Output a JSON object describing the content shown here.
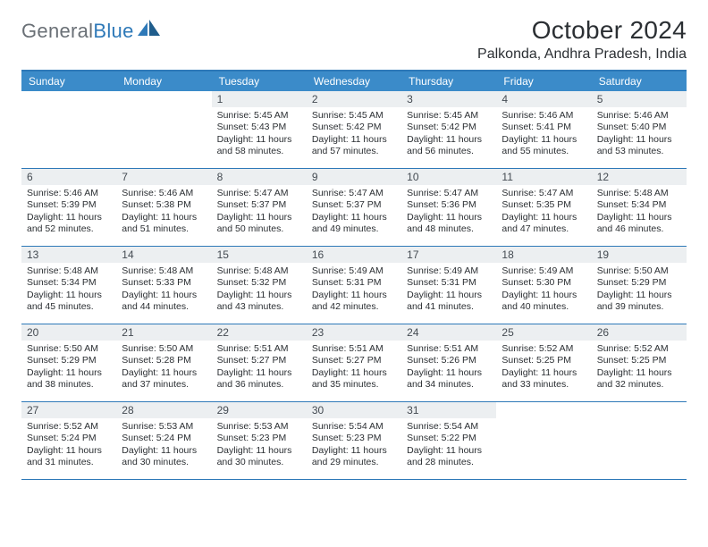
{
  "brand": {
    "general": "General",
    "blue": "Blue"
  },
  "title": "October 2024",
  "location": "Palkonda, Andhra Pradesh, India",
  "colors": {
    "header_bg": "#3b8bc9",
    "rule": "#2e79b8",
    "daynum_bg": "#eceff1",
    "text": "#2b2f33"
  },
  "weekdays": [
    "Sunday",
    "Monday",
    "Tuesday",
    "Wednesday",
    "Thursday",
    "Friday",
    "Saturday"
  ],
  "weeks": [
    [
      {
        "day": "",
        "sunrise": "",
        "sunset": "",
        "daylight": ""
      },
      {
        "day": "",
        "sunrise": "",
        "sunset": "",
        "daylight": ""
      },
      {
        "day": "1",
        "sunrise": "Sunrise: 5:45 AM",
        "sunset": "Sunset: 5:43 PM",
        "daylight": "Daylight: 11 hours and 58 minutes."
      },
      {
        "day": "2",
        "sunrise": "Sunrise: 5:45 AM",
        "sunset": "Sunset: 5:42 PM",
        "daylight": "Daylight: 11 hours and 57 minutes."
      },
      {
        "day": "3",
        "sunrise": "Sunrise: 5:45 AM",
        "sunset": "Sunset: 5:42 PM",
        "daylight": "Daylight: 11 hours and 56 minutes."
      },
      {
        "day": "4",
        "sunrise": "Sunrise: 5:46 AM",
        "sunset": "Sunset: 5:41 PM",
        "daylight": "Daylight: 11 hours and 55 minutes."
      },
      {
        "day": "5",
        "sunrise": "Sunrise: 5:46 AM",
        "sunset": "Sunset: 5:40 PM",
        "daylight": "Daylight: 11 hours and 53 minutes."
      }
    ],
    [
      {
        "day": "6",
        "sunrise": "Sunrise: 5:46 AM",
        "sunset": "Sunset: 5:39 PM",
        "daylight": "Daylight: 11 hours and 52 minutes."
      },
      {
        "day": "7",
        "sunrise": "Sunrise: 5:46 AM",
        "sunset": "Sunset: 5:38 PM",
        "daylight": "Daylight: 11 hours and 51 minutes."
      },
      {
        "day": "8",
        "sunrise": "Sunrise: 5:47 AM",
        "sunset": "Sunset: 5:37 PM",
        "daylight": "Daylight: 11 hours and 50 minutes."
      },
      {
        "day": "9",
        "sunrise": "Sunrise: 5:47 AM",
        "sunset": "Sunset: 5:37 PM",
        "daylight": "Daylight: 11 hours and 49 minutes."
      },
      {
        "day": "10",
        "sunrise": "Sunrise: 5:47 AM",
        "sunset": "Sunset: 5:36 PM",
        "daylight": "Daylight: 11 hours and 48 minutes."
      },
      {
        "day": "11",
        "sunrise": "Sunrise: 5:47 AM",
        "sunset": "Sunset: 5:35 PM",
        "daylight": "Daylight: 11 hours and 47 minutes."
      },
      {
        "day": "12",
        "sunrise": "Sunrise: 5:48 AM",
        "sunset": "Sunset: 5:34 PM",
        "daylight": "Daylight: 11 hours and 46 minutes."
      }
    ],
    [
      {
        "day": "13",
        "sunrise": "Sunrise: 5:48 AM",
        "sunset": "Sunset: 5:34 PM",
        "daylight": "Daylight: 11 hours and 45 minutes."
      },
      {
        "day": "14",
        "sunrise": "Sunrise: 5:48 AM",
        "sunset": "Sunset: 5:33 PM",
        "daylight": "Daylight: 11 hours and 44 minutes."
      },
      {
        "day": "15",
        "sunrise": "Sunrise: 5:48 AM",
        "sunset": "Sunset: 5:32 PM",
        "daylight": "Daylight: 11 hours and 43 minutes."
      },
      {
        "day": "16",
        "sunrise": "Sunrise: 5:49 AM",
        "sunset": "Sunset: 5:31 PM",
        "daylight": "Daylight: 11 hours and 42 minutes."
      },
      {
        "day": "17",
        "sunrise": "Sunrise: 5:49 AM",
        "sunset": "Sunset: 5:31 PM",
        "daylight": "Daylight: 11 hours and 41 minutes."
      },
      {
        "day": "18",
        "sunrise": "Sunrise: 5:49 AM",
        "sunset": "Sunset: 5:30 PM",
        "daylight": "Daylight: 11 hours and 40 minutes."
      },
      {
        "day": "19",
        "sunrise": "Sunrise: 5:50 AM",
        "sunset": "Sunset: 5:29 PM",
        "daylight": "Daylight: 11 hours and 39 minutes."
      }
    ],
    [
      {
        "day": "20",
        "sunrise": "Sunrise: 5:50 AM",
        "sunset": "Sunset: 5:29 PM",
        "daylight": "Daylight: 11 hours and 38 minutes."
      },
      {
        "day": "21",
        "sunrise": "Sunrise: 5:50 AM",
        "sunset": "Sunset: 5:28 PM",
        "daylight": "Daylight: 11 hours and 37 minutes."
      },
      {
        "day": "22",
        "sunrise": "Sunrise: 5:51 AM",
        "sunset": "Sunset: 5:27 PM",
        "daylight": "Daylight: 11 hours and 36 minutes."
      },
      {
        "day": "23",
        "sunrise": "Sunrise: 5:51 AM",
        "sunset": "Sunset: 5:27 PM",
        "daylight": "Daylight: 11 hours and 35 minutes."
      },
      {
        "day": "24",
        "sunrise": "Sunrise: 5:51 AM",
        "sunset": "Sunset: 5:26 PM",
        "daylight": "Daylight: 11 hours and 34 minutes."
      },
      {
        "day": "25",
        "sunrise": "Sunrise: 5:52 AM",
        "sunset": "Sunset: 5:25 PM",
        "daylight": "Daylight: 11 hours and 33 minutes."
      },
      {
        "day": "26",
        "sunrise": "Sunrise: 5:52 AM",
        "sunset": "Sunset: 5:25 PM",
        "daylight": "Daylight: 11 hours and 32 minutes."
      }
    ],
    [
      {
        "day": "27",
        "sunrise": "Sunrise: 5:52 AM",
        "sunset": "Sunset: 5:24 PM",
        "daylight": "Daylight: 11 hours and 31 minutes."
      },
      {
        "day": "28",
        "sunrise": "Sunrise: 5:53 AM",
        "sunset": "Sunset: 5:24 PM",
        "daylight": "Daylight: 11 hours and 30 minutes."
      },
      {
        "day": "29",
        "sunrise": "Sunrise: 5:53 AM",
        "sunset": "Sunset: 5:23 PM",
        "daylight": "Daylight: 11 hours and 30 minutes."
      },
      {
        "day": "30",
        "sunrise": "Sunrise: 5:54 AM",
        "sunset": "Sunset: 5:23 PM",
        "daylight": "Daylight: 11 hours and 29 minutes."
      },
      {
        "day": "31",
        "sunrise": "Sunrise: 5:54 AM",
        "sunset": "Sunset: 5:22 PM",
        "daylight": "Daylight: 11 hours and 28 minutes."
      },
      {
        "day": "",
        "sunrise": "",
        "sunset": "",
        "daylight": ""
      },
      {
        "day": "",
        "sunrise": "",
        "sunset": "",
        "daylight": ""
      }
    ]
  ]
}
